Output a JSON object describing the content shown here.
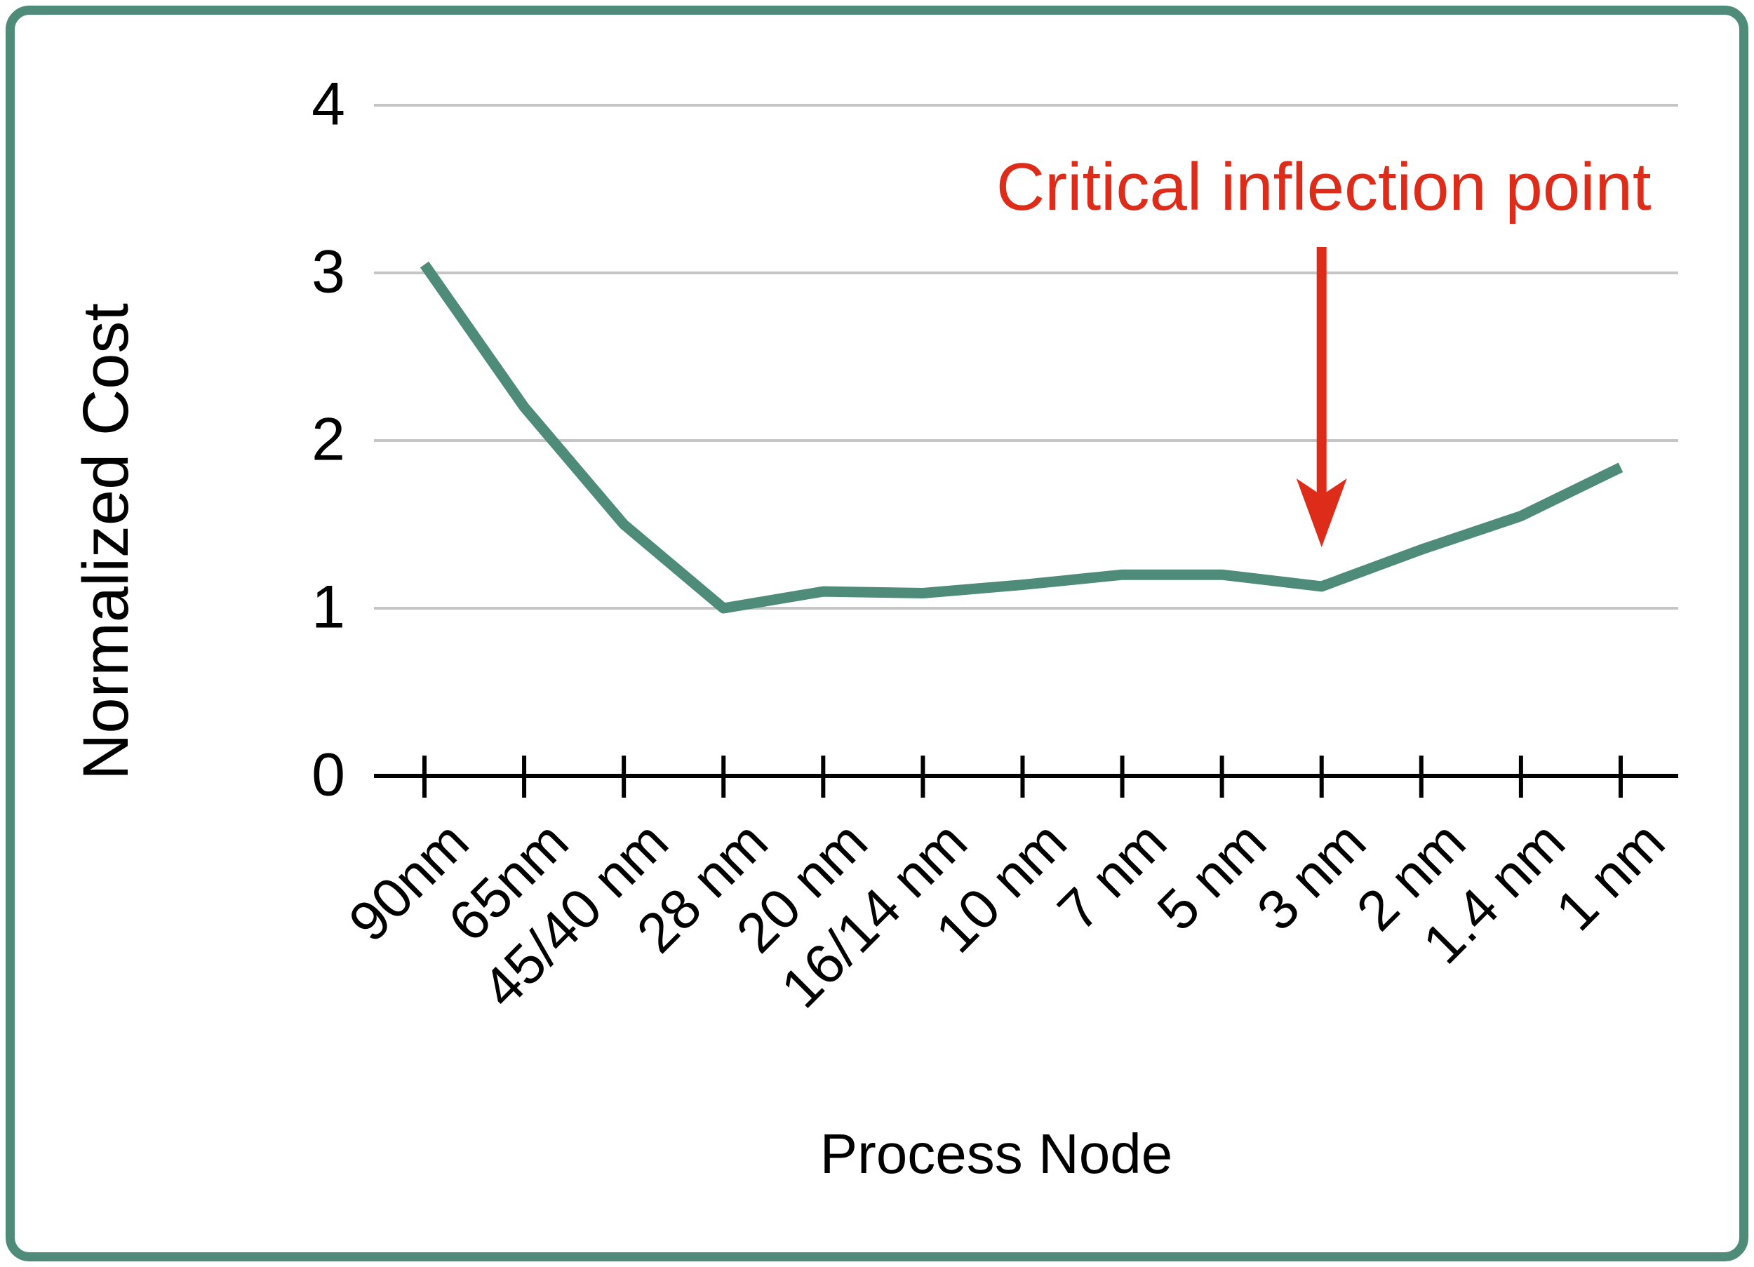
{
  "figure": {
    "background": "#ffffff",
    "border_color": "#4e8b78",
    "gridline_color": "#c5c5c5",
    "axis_color": "#000000",
    "text_color": "#000000"
  },
  "chart_data": {
    "type": "line",
    "title": "",
    "categories": [
      "90nm",
      "65nm",
      "45/40 nm",
      "28 nm",
      "20 nm",
      "16/14 nm",
      "10 nm",
      "7 nm",
      "5 nm",
      "3 nm",
      "2 nm",
      "1.4 nm",
      "1 nm"
    ],
    "values": [
      3.05,
      2.2,
      1.5,
      1.0,
      1.1,
      1.09,
      1.14,
      1.2,
      1.2,
      1.13,
      1.35,
      1.55,
      1.84
    ],
    "xlabel": "Process Node",
    "ylabel": "Normalized Cost",
    "ylim": [
      0,
      4
    ],
    "yticks": [
      0,
      1,
      2,
      3,
      4
    ],
    "grid": "horizontal",
    "legend": "none",
    "line_color": "#4e8b78",
    "annotation": {
      "text": "Critical inflection point",
      "color": "#de2c1a",
      "target_category": "3 nm"
    }
  }
}
